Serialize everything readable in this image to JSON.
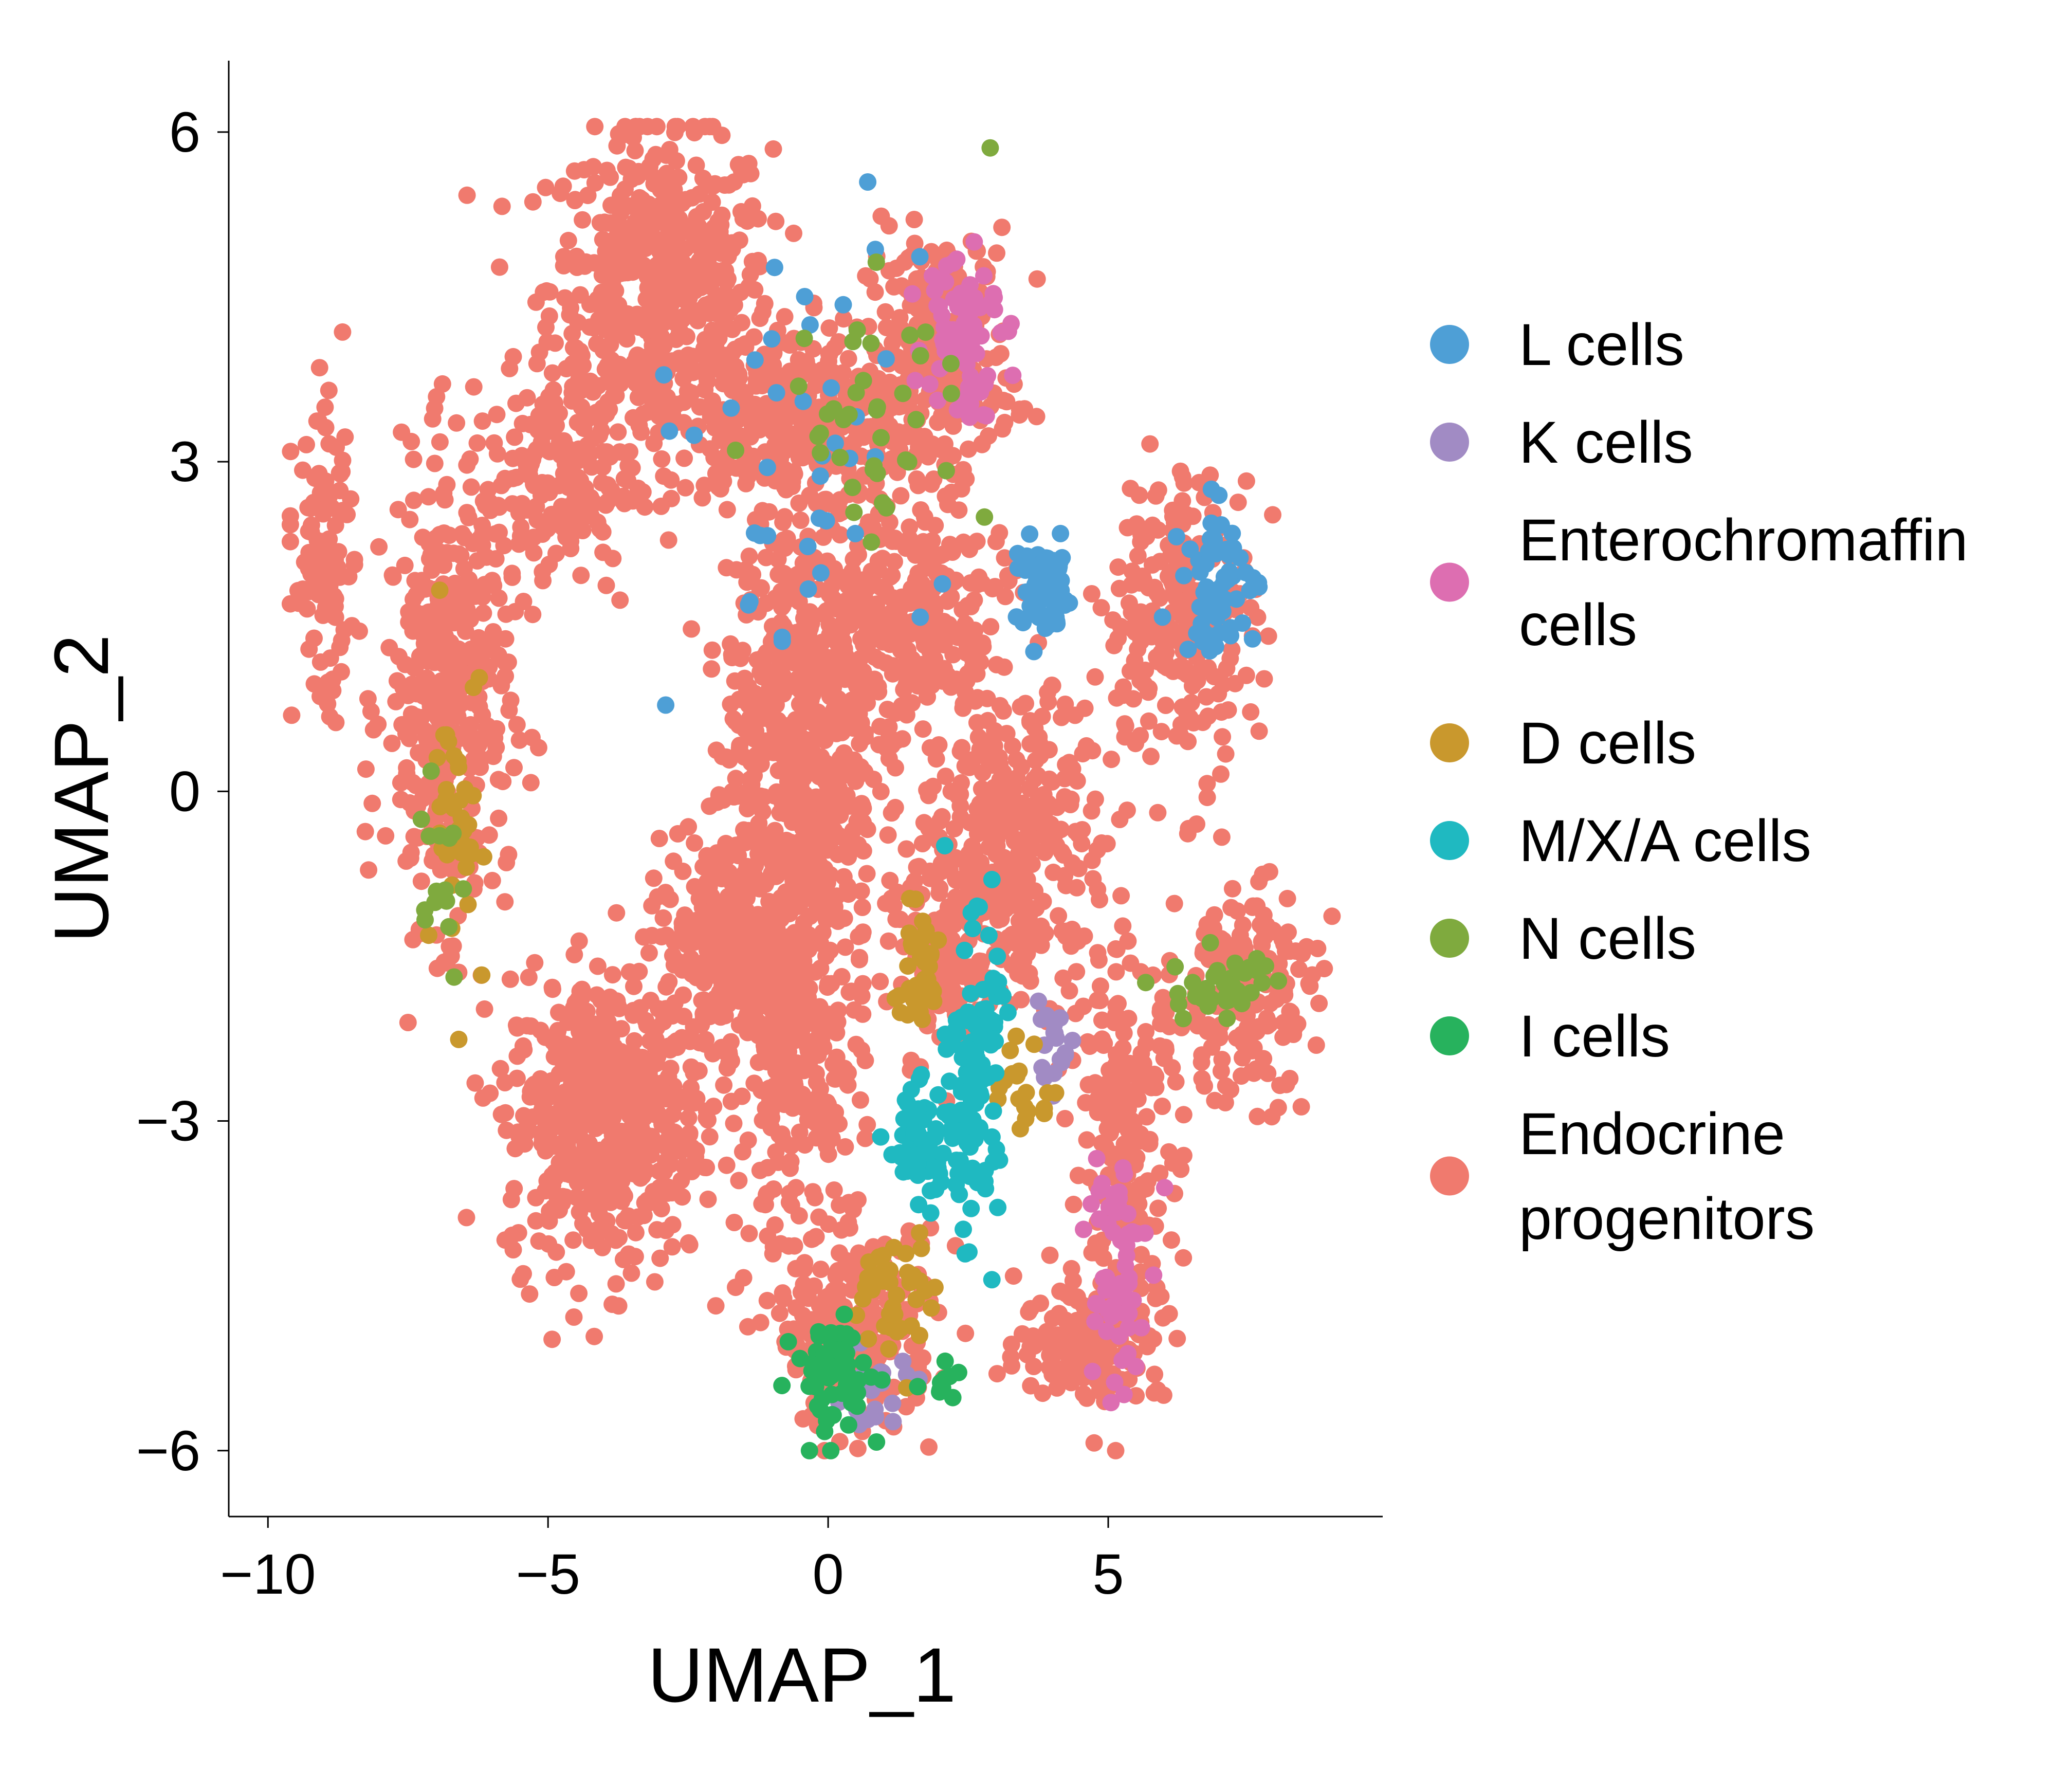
{
  "chart_data": {
    "type": "scatter",
    "title": "",
    "xlabel": "UMAP_1",
    "ylabel": "UMAP_2",
    "xlim": [
      -10.7,
      9.9
    ],
    "ylim": [
      -6.6,
      6.65
    ],
    "xticks": [
      {
        "value": -10,
        "label": "−10"
      },
      {
        "value": -5,
        "label": "−5"
      },
      {
        "value": 0,
        "label": "0"
      },
      {
        "value": 5,
        "label": "5"
      }
    ],
    "yticks": [
      {
        "value": -6,
        "label": "−6"
      },
      {
        "value": -3,
        "label": "−3"
      },
      {
        "value": 0,
        "label": "0"
      },
      {
        "value": 3,
        "label": "3"
      },
      {
        "value": 6,
        "label": "6"
      }
    ],
    "grid": false,
    "legend_position": "right",
    "series": [
      {
        "name": "L cells",
        "label_lines": [
          "L cells"
        ],
        "color": "#4E9FD6"
      },
      {
        "name": "K cells",
        "label_lines": [
          "K cells"
        ],
        "color": "#A18BC4"
      },
      {
        "name": "Enterochromaffin cells",
        "label_lines": [
          "Enterochromaffin",
          "cells"
        ],
        "color": "#DD6EB1"
      },
      {
        "name": "D cells",
        "label_lines": [
          "D cells"
        ],
        "color": "#C9982D"
      },
      {
        "name": "M/X/A cells",
        "label_lines": [
          "M/X/A cells"
        ],
        "color": "#1FB9C1"
      },
      {
        "name": "N cells",
        "label_lines": [
          "N cells"
        ],
        "color": "#7FAA3E"
      },
      {
        "name": "I cells",
        "label_lines": [
          "I cells"
        ],
        "color": "#27B25D"
      },
      {
        "name": "Endocrine progenitors",
        "label_lines": [
          "Endocrine",
          "progenitors"
        ],
        "color": "#F07A6E"
      }
    ],
    "clusters": [
      {
        "series": "Endocrine progenitors",
        "cx": -3.0,
        "cy": 4.6,
        "rx": 1.8,
        "ry": 1.3,
        "n": 520
      },
      {
        "series": "Endocrine progenitors",
        "cx": -0.5,
        "cy": 3.4,
        "rx": 2.2,
        "ry": 0.7,
        "n": 360
      },
      {
        "series": "Endocrine progenitors",
        "cx": 2.0,
        "cy": 4.0,
        "rx": 1.2,
        "ry": 1.0,
        "n": 220
      },
      {
        "series": "Endocrine progenitors",
        "cx": -6.8,
        "cy": 0.8,
        "rx": 1.0,
        "ry": 1.8,
        "n": 380
      },
      {
        "series": "Endocrine progenitors",
        "cx": -5.0,
        "cy": 2.8,
        "rx": 1.4,
        "ry": 0.9,
        "n": 200
      },
      {
        "series": "Endocrine progenitors",
        "cx": -4.0,
        "cy": -3.0,
        "rx": 1.6,
        "ry": 1.2,
        "n": 520
      },
      {
        "series": "Endocrine progenitors",
        "cx": -0.5,
        "cy": 0.5,
        "rx": 1.2,
        "ry": 2.0,
        "n": 560
      },
      {
        "series": "Endocrine progenitors",
        "cx": -1.5,
        "cy": -1.5,
        "rx": 1.7,
        "ry": 1.0,
        "n": 420
      },
      {
        "series": "Endocrine progenitors",
        "cx": 1.5,
        "cy": 1.5,
        "rx": 1.6,
        "ry": 1.1,
        "n": 300
      },
      {
        "series": "Endocrine progenitors",
        "cx": 3.5,
        "cy": -0.5,
        "rx": 1.3,
        "ry": 1.2,
        "n": 260
      },
      {
        "series": "Endocrine progenitors",
        "cx": 6.3,
        "cy": 1.6,
        "rx": 1.2,
        "ry": 1.2,
        "n": 220
      },
      {
        "series": "Endocrine progenitors",
        "cx": 7.4,
        "cy": -1.8,
        "rx": 1.2,
        "ry": 0.9,
        "n": 180
      },
      {
        "series": "Endocrine progenitors",
        "cx": 5.3,
        "cy": -3.2,
        "rx": 0.9,
        "ry": 1.6,
        "n": 200
      },
      {
        "series": "Endocrine progenitors",
        "cx": 4.7,
        "cy": -5.0,
        "rx": 1.2,
        "ry": 0.5,
        "n": 140
      },
      {
        "series": "Endocrine progenitors",
        "cx": 0.5,
        "cy": -4.9,
        "rx": 1.3,
        "ry": 0.8,
        "n": 230
      },
      {
        "series": "Endocrine progenitors",
        "cx": -9.0,
        "cy": 2.0,
        "rx": 0.5,
        "ry": 1.2,
        "n": 120
      },
      {
        "series": "Endocrine progenitors",
        "cx": -0.5,
        "cy": -2.6,
        "rx": 1.0,
        "ry": 1.4,
        "n": 200
      },
      {
        "series": "Endocrine progenitors",
        "cx": 2.3,
        "cy": -1.2,
        "rx": 1.0,
        "ry": 1.0,
        "n": 160
      },
      {
        "series": "L cells",
        "cx": 3.9,
        "cy": 1.8,
        "rx": 0.5,
        "ry": 0.4,
        "n": 60
      },
      {
        "series": "L cells",
        "cx": 7.0,
        "cy": 1.9,
        "rx": 0.6,
        "ry": 0.6,
        "n": 60
      },
      {
        "series": "L cells",
        "cx": -1.0,
        "cy": 3.0,
        "rx": 2.5,
        "ry": 2.0,
        "n": 40
      },
      {
        "series": "K cells",
        "cx": 4.0,
        "cy": -2.3,
        "rx": 0.4,
        "ry": 0.3,
        "n": 18
      },
      {
        "series": "K cells",
        "cx": 0.8,
        "cy": -5.4,
        "rx": 0.8,
        "ry": 0.4,
        "n": 22
      },
      {
        "series": "Enterochromaffin cells",
        "cx": 2.4,
        "cy": 4.3,
        "rx": 0.6,
        "ry": 0.8,
        "n": 70
      },
      {
        "series": "Enterochromaffin cells",
        "cx": 5.1,
        "cy": -4.4,
        "rx": 0.5,
        "ry": 1.2,
        "n": 60
      },
      {
        "series": "D cells",
        "cx": 1.6,
        "cy": -1.6,
        "rx": 0.4,
        "ry": 0.5,
        "n": 40
      },
      {
        "series": "D cells",
        "cx": 1.2,
        "cy": -4.6,
        "rx": 0.6,
        "ry": 0.6,
        "n": 40
      },
      {
        "series": "D cells",
        "cx": -6.5,
        "cy": -0.3,
        "rx": 0.5,
        "ry": 1.3,
        "n": 40
      },
      {
        "series": "D cells",
        "cx": 3.5,
        "cy": -2.8,
        "rx": 0.4,
        "ry": 0.4,
        "n": 20
      },
      {
        "series": "M/X/A cells",
        "cx": 2.6,
        "cy": -2.6,
        "rx": 0.4,
        "ry": 1.2,
        "n": 130
      },
      {
        "series": "M/X/A cells",
        "cx": 1.6,
        "cy": -3.2,
        "rx": 0.5,
        "ry": 0.5,
        "n": 60
      },
      {
        "series": "N cells",
        "cx": 7.0,
        "cy": -1.8,
        "rx": 0.8,
        "ry": 0.3,
        "n": 40
      },
      {
        "series": "N cells",
        "cx": 1.0,
        "cy": 3.5,
        "rx": 1.8,
        "ry": 1.0,
        "n": 40
      },
      {
        "series": "N cells",
        "cx": -7.0,
        "cy": -0.6,
        "rx": 0.4,
        "ry": 0.8,
        "n": 16
      },
      {
        "series": "I cells",
        "cx": 0.1,
        "cy": -5.3,
        "rx": 0.6,
        "ry": 0.5,
        "n": 70
      },
      {
        "series": "I cells",
        "cx": 2.0,
        "cy": -5.4,
        "rx": 0.4,
        "ry": 0.2,
        "n": 10
      }
    ]
  }
}
